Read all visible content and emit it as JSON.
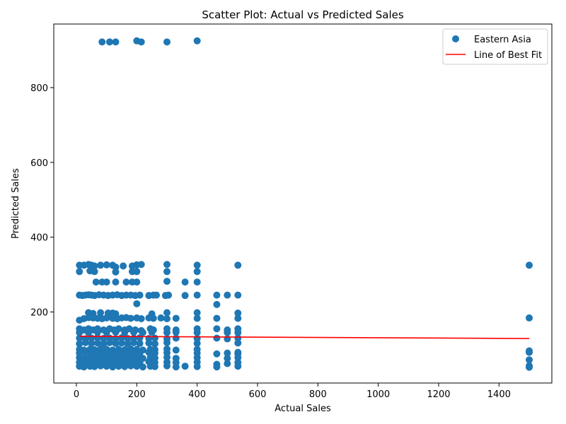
{
  "chart_data": {
    "type": "scatter",
    "title": "Scatter Plot: Actual vs Predicted Sales",
    "xlabel": "Actual Sales",
    "ylabel": "Predicted Sales",
    "xlim": [
      -75,
      1575
    ],
    "ylim": [
      10,
      970
    ],
    "xticks": [
      0,
      200,
      400,
      600,
      800,
      1000,
      1200,
      1400
    ],
    "yticks": [
      200,
      400,
      600,
      800
    ],
    "grid": false,
    "legend": {
      "placement": "top-right",
      "entries": [
        "Eastern Asia",
        "Line of Best Fit"
      ]
    },
    "colors": {
      "points": "#1f77b4",
      "fit_line": "#ff0000"
    },
    "series": [
      {
        "name": "Eastern Asia",
        "points": [
          [
            85,
            922
          ],
          [
            110,
            922
          ],
          [
            130,
            922
          ],
          [
            200,
            925
          ],
          [
            215,
            922
          ],
          [
            300,
            922
          ],
          [
            400,
            925
          ],
          [
            10,
            325
          ],
          [
            25,
            325
          ],
          [
            40,
            327
          ],
          [
            50,
            325
          ],
          [
            60,
            323
          ],
          [
            80,
            325
          ],
          [
            100,
            326
          ],
          [
            120,
            325
          ],
          [
            130,
            320
          ],
          [
            155,
            323
          ],
          [
            185,
            323
          ],
          [
            200,
            326
          ],
          [
            215,
            327
          ],
          [
            300,
            327
          ],
          [
            400,
            325
          ],
          [
            535,
            325
          ],
          [
            1500,
            325
          ],
          [
            10,
            308
          ],
          [
            45,
            310
          ],
          [
            60,
            308
          ],
          [
            130,
            307
          ],
          [
            185,
            308
          ],
          [
            200,
            308
          ],
          [
            300,
            308
          ],
          [
            400,
            308
          ],
          [
            65,
            280
          ],
          [
            85,
            280
          ],
          [
            100,
            280
          ],
          [
            130,
            280
          ],
          [
            165,
            280
          ],
          [
            185,
            280
          ],
          [
            200,
            280
          ],
          [
            300,
            282
          ],
          [
            360,
            280
          ],
          [
            400,
            280
          ],
          [
            10,
            245
          ],
          [
            20,
            244
          ],
          [
            30,
            245
          ],
          [
            40,
            246
          ],
          [
            50,
            245
          ],
          [
            60,
            244
          ],
          [
            75,
            246
          ],
          [
            90,
            245
          ],
          [
            105,
            244
          ],
          [
            120,
            245
          ],
          [
            135,
            246
          ],
          [
            150,
            244
          ],
          [
            165,
            245
          ],
          [
            180,
            245
          ],
          [
            195,
            244
          ],
          [
            210,
            245
          ],
          [
            240,
            244
          ],
          [
            255,
            245
          ],
          [
            265,
            245
          ],
          [
            295,
            244
          ],
          [
            305,
            245
          ],
          [
            360,
            244
          ],
          [
            400,
            245
          ],
          [
            465,
            245
          ],
          [
            500,
            245
          ],
          [
            535,
            245
          ],
          [
            200,
            222
          ],
          [
            465,
            220
          ],
          [
            40,
            198
          ],
          [
            55,
            196
          ],
          [
            80,
            198
          ],
          [
            105,
            197
          ],
          [
            120,
            197
          ],
          [
            130,
            195
          ],
          [
            250,
            195
          ],
          [
            300,
            198
          ],
          [
            400,
            198
          ],
          [
            535,
            197
          ],
          [
            10,
            178
          ],
          [
            25,
            182
          ],
          [
            40,
            185
          ],
          [
            55,
            184
          ],
          [
            70,
            183
          ],
          [
            85,
            182
          ],
          [
            100,
            184
          ],
          [
            120,
            183
          ],
          [
            135,
            182
          ],
          [
            150,
            184
          ],
          [
            165,
            185
          ],
          [
            180,
            183
          ],
          [
            200,
            184
          ],
          [
            215,
            182
          ],
          [
            240,
            184
          ],
          [
            255,
            183
          ],
          [
            280,
            184
          ],
          [
            300,
            182
          ],
          [
            330,
            183
          ],
          [
            400,
            183
          ],
          [
            465,
            183
          ],
          [
            535,
            183
          ],
          [
            1500,
            184
          ],
          [
            10,
            155
          ],
          [
            25,
            152
          ],
          [
            40,
            155
          ],
          [
            55,
            152
          ],
          [
            70,
            155
          ],
          [
            90,
            152
          ],
          [
            110,
            155
          ],
          [
            125,
            152
          ],
          [
            140,
            155
          ],
          [
            160,
            152
          ],
          [
            175,
            155
          ],
          [
            195,
            152
          ],
          [
            215,
            150
          ],
          [
            245,
            155
          ],
          [
            255,
            152
          ],
          [
            300,
            155
          ],
          [
            330,
            152
          ],
          [
            400,
            155
          ],
          [
            465,
            155
          ],
          [
            500,
            152
          ],
          [
            535,
            155
          ],
          [
            10,
            145
          ],
          [
            40,
            145
          ],
          [
            70,
            146
          ],
          [
            100,
            145
          ],
          [
            130,
            146
          ],
          [
            160,
            145
          ],
          [
            190,
            146
          ],
          [
            220,
            145
          ],
          [
            250,
            146
          ],
          [
            300,
            145
          ],
          [
            330,
            146
          ],
          [
            400,
            145
          ],
          [
            500,
            145
          ],
          [
            535,
            145
          ],
          [
            10,
            130
          ],
          [
            30,
            128
          ],
          [
            50,
            130
          ],
          [
            70,
            131
          ],
          [
            90,
            129
          ],
          [
            110,
            130
          ],
          [
            130,
            128
          ],
          [
            150,
            131
          ],
          [
            170,
            129
          ],
          [
            190,
            130
          ],
          [
            210,
            131
          ],
          [
            240,
            129
          ],
          [
            260,
            130
          ],
          [
            300,
            128
          ],
          [
            330,
            130
          ],
          [
            400,
            129
          ],
          [
            465,
            130
          ],
          [
            500,
            128
          ],
          [
            535,
            130
          ],
          [
            10,
            115
          ],
          [
            30,
            118
          ],
          [
            50,
            116
          ],
          [
            70,
            117
          ],
          [
            90,
            115
          ],
          [
            110,
            118
          ],
          [
            130,
            116
          ],
          [
            150,
            117
          ],
          [
            170,
            115
          ],
          [
            190,
            118
          ],
          [
            210,
            116
          ],
          [
            240,
            117
          ],
          [
            260,
            115
          ],
          [
            300,
            118
          ],
          [
            400,
            116
          ],
          [
            535,
            117
          ],
          [
            10,
            100
          ],
          [
            25,
            98
          ],
          [
            45,
            100
          ],
          [
            60,
            99
          ],
          [
            80,
            101
          ],
          [
            100,
            100
          ],
          [
            120,
            98
          ],
          [
            140,
            100
          ],
          [
            160,
            99
          ],
          [
            180,
            101
          ],
          [
            200,
            100
          ],
          [
            220,
            98
          ],
          [
            245,
            100
          ],
          [
            260,
            99
          ],
          [
            300,
            101
          ],
          [
            330,
            98
          ],
          [
            400,
            100
          ],
          [
            465,
            88
          ],
          [
            500,
            90
          ],
          [
            535,
            92
          ],
          [
            1500,
            96
          ],
          [
            10,
            90
          ],
          [
            30,
            91
          ],
          [
            50,
            90
          ],
          [
            70,
            92
          ],
          [
            90,
            90
          ],
          [
            110,
            91
          ],
          [
            130,
            90
          ],
          [
            150,
            92
          ],
          [
            170,
            90
          ],
          [
            190,
            91
          ],
          [
            210,
            90
          ],
          [
            240,
            92
          ],
          [
            260,
            90
          ],
          [
            300,
            91
          ],
          [
            400,
            90
          ],
          [
            535,
            88
          ],
          [
            1500,
            92
          ],
          [
            10,
            78
          ],
          [
            25,
            76
          ],
          [
            45,
            78
          ],
          [
            60,
            77
          ],
          [
            80,
            79
          ],
          [
            100,
            78
          ],
          [
            120,
            76
          ],
          [
            140,
            78
          ],
          [
            160,
            77
          ],
          [
            180,
            79
          ],
          [
            200,
            78
          ],
          [
            220,
            76
          ],
          [
            245,
            78
          ],
          [
            260,
            77
          ],
          [
            300,
            79
          ],
          [
            330,
            76
          ],
          [
            400,
            78
          ],
          [
            500,
            76
          ],
          [
            535,
            78
          ],
          [
            1500,
            72
          ],
          [
            10,
            65
          ],
          [
            30,
            66
          ],
          [
            50,
            65
          ],
          [
            70,
            67
          ],
          [
            90,
            65
          ],
          [
            110,
            66
          ],
          [
            130,
            65
          ],
          [
            150,
            67
          ],
          [
            170,
            65
          ],
          [
            190,
            66
          ],
          [
            210,
            65
          ],
          [
            240,
            67
          ],
          [
            260,
            65
          ],
          [
            300,
            66
          ],
          [
            330,
            65
          ],
          [
            400,
            66
          ],
          [
            465,
            60
          ],
          [
            500,
            62
          ],
          [
            535,
            65
          ],
          [
            10,
            55
          ],
          [
            25,
            53
          ],
          [
            45,
            55
          ],
          [
            60,
            54
          ],
          [
            80,
            56
          ],
          [
            100,
            55
          ],
          [
            120,
            53
          ],
          [
            140,
            55
          ],
          [
            160,
            54
          ],
          [
            180,
            56
          ],
          [
            200,
            55
          ],
          [
            220,
            53
          ],
          [
            245,
            55
          ],
          [
            260,
            54
          ],
          [
            300,
            56
          ],
          [
            330,
            53
          ],
          [
            360,
            55
          ],
          [
            400,
            54
          ],
          [
            465,
            53
          ],
          [
            535,
            55
          ],
          [
            1500,
            56
          ],
          [
            1500,
            52
          ]
        ]
      }
    ],
    "fit_line": {
      "name": "Line of Best Fit",
      "x": [
        10,
        1500
      ],
      "y": [
        135,
        129
      ]
    }
  }
}
